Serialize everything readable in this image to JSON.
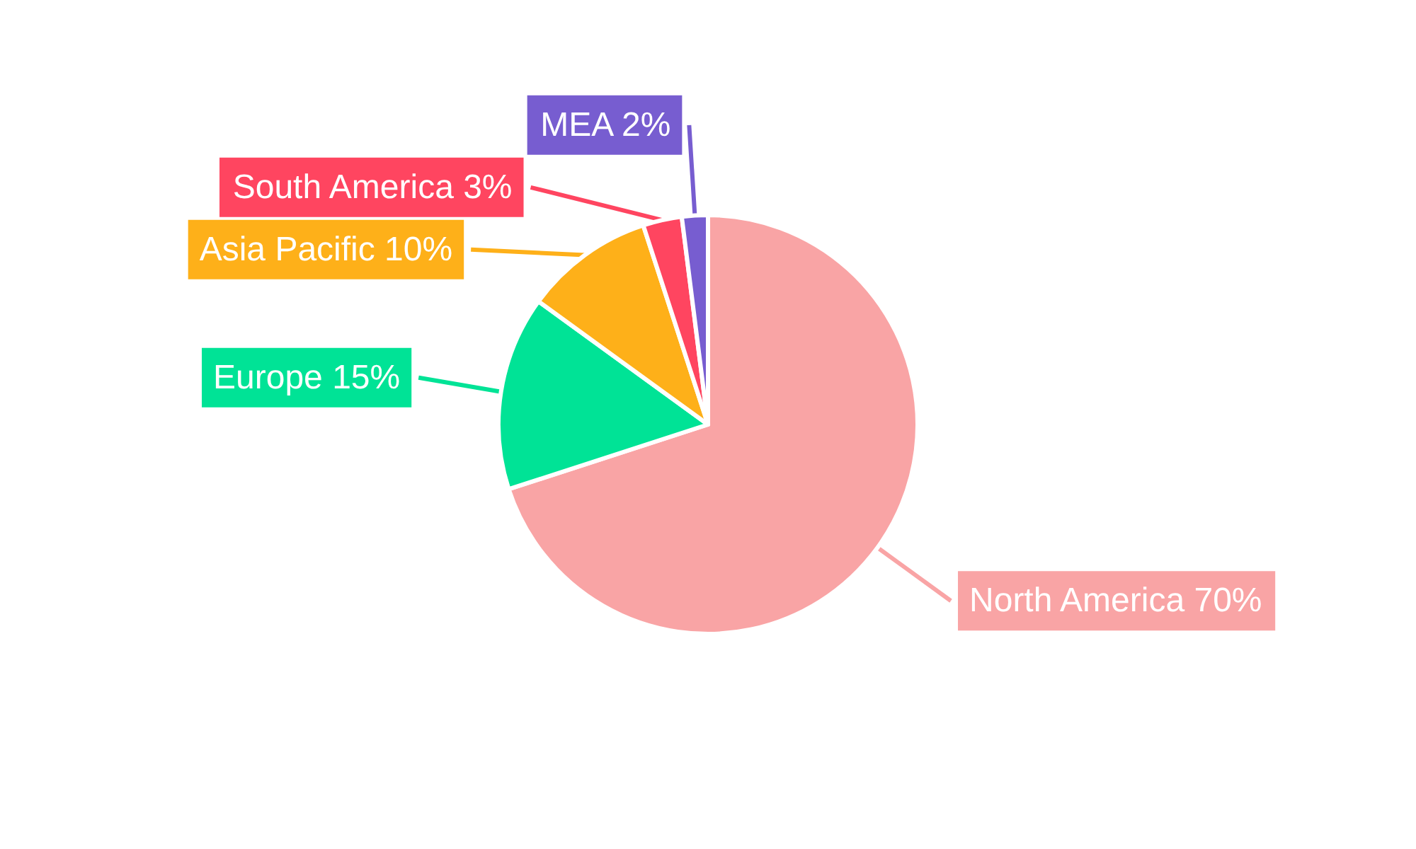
{
  "chart_data": {
    "type": "pie",
    "categories": [
      "North America",
      "Europe",
      "Asia Pacific",
      "South America",
      "MEA"
    ],
    "values": [
      70,
      15,
      10,
      3,
      2
    ],
    "value_labels": [
      "70%",
      "15%",
      "10%",
      "3%",
      "2%"
    ],
    "colors": [
      "#f9a4a5",
      "#00e396",
      "#feb019",
      "#ff4560",
      "#775dd0"
    ]
  }
}
